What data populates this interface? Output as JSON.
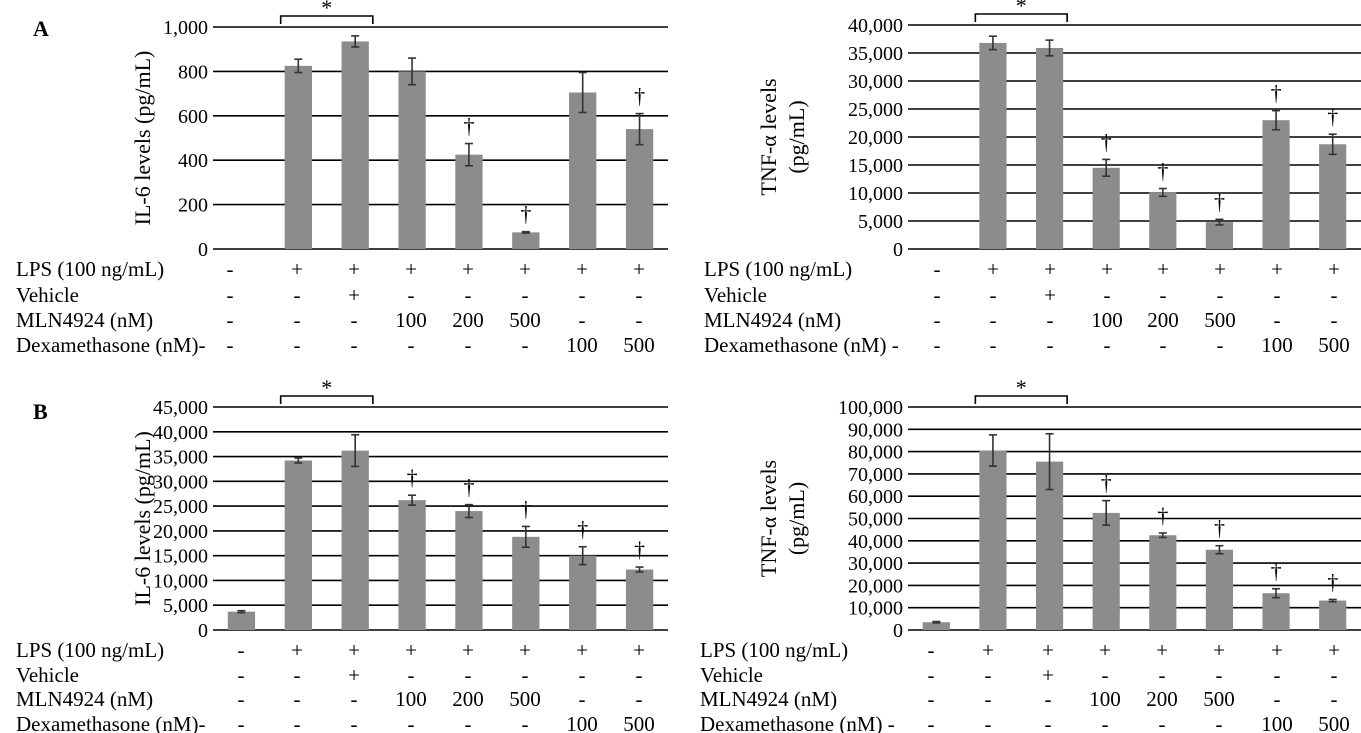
{
  "panel_labels": [
    "A",
    "B"
  ],
  "colors": {
    "bar": "#8c8c8c",
    "grid": "#000000",
    "text": "#000000"
  },
  "row_labels": [
    "LPS (100 ng/mL)",
    "Vehicle",
    "MLN4924 (nM)",
    "Dexamethasone (nM)-"
  ],
  "row_labels_right": [
    "LPS (100 ng/mL)",
    "Vehicle",
    "MLN4924 (nM)",
    "Dexamethasone (nM) -"
  ],
  "conditions": [
    [
      "-",
      "-",
      "-",
      "-"
    ],
    [
      "+",
      "-",
      "-",
      "-"
    ],
    [
      "+",
      "+",
      "-",
      "-"
    ],
    [
      "+",
      "-",
      "100",
      "-"
    ],
    [
      "+",
      "-",
      "200",
      "-"
    ],
    [
      "+",
      "-",
      "500",
      "-"
    ],
    [
      "+",
      "-",
      "-",
      "100"
    ],
    [
      "+",
      "-",
      "-",
      "500"
    ]
  ],
  "chart_data": [
    {
      "type": "bar",
      "panel": "A",
      "ylabel": "IL-6 levels (pg/mL)",
      "ylim": [
        0,
        1000
      ],
      "yticks": [
        "0",
        "200",
        "400",
        "600",
        "800",
        "1,000"
      ],
      "values": [
        0,
        825,
        935,
        800,
        425,
        75,
        705,
        540
      ],
      "errors": [
        0,
        30,
        25,
        60,
        50,
        3,
        90,
        70
      ],
      "significance": [
        {
          "type": "bracket",
          "from": 1,
          "to": 2,
          "symbol": "*"
        },
        {
          "type": "mark",
          "index": 4,
          "symbol": "†"
        },
        {
          "type": "mark",
          "index": 5,
          "symbol": "†"
        },
        {
          "type": "mark",
          "index": 7,
          "symbol": "†"
        }
      ]
    },
    {
      "type": "bar",
      "panel": "A",
      "ylabel": "TNF-α levels (pg/mL)",
      "ylim": [
        0,
        40000
      ],
      "yticks": [
        "0",
        "5,000",
        "10,000",
        "15,000",
        "20,000",
        "25,000",
        "30,000",
        "35,000",
        "40,000"
      ],
      "values": [
        0,
        36800,
        35900,
        14500,
        10100,
        4800,
        23000,
        18700
      ],
      "errors": [
        0,
        1200,
        1400,
        1500,
        700,
        500,
        1700,
        1800
      ],
      "significance": [
        {
          "type": "bracket",
          "from": 1,
          "to": 2,
          "symbol": "*"
        },
        {
          "type": "mark",
          "index": 3,
          "symbol": "†"
        },
        {
          "type": "mark",
          "index": 4,
          "symbol": "†"
        },
        {
          "type": "mark",
          "index": 5,
          "symbol": "†"
        },
        {
          "type": "mark",
          "index": 6,
          "symbol": "†"
        },
        {
          "type": "mark",
          "index": 7,
          "symbol": "†"
        }
      ]
    },
    {
      "type": "bar",
      "panel": "B",
      "ylabel": "IL-6 levels (pg/mL)",
      "ylim": [
        0,
        45000
      ],
      "yticks": [
        "0",
        "5,000",
        "10,000",
        "15,000",
        "20,000",
        "25,000",
        "30,000",
        "35,000",
        "40,000",
        "45,000"
      ],
      "values": [
        3700,
        34200,
        36200,
        26200,
        24000,
        18800,
        15000,
        12200
      ],
      "errors": [
        200,
        500,
        3200,
        1000,
        1300,
        2100,
        1800,
        500
      ],
      "significance": [
        {
          "type": "bracket",
          "from": 1,
          "to": 2,
          "symbol": "*"
        },
        {
          "type": "mark",
          "index": 3,
          "symbol": "†"
        },
        {
          "type": "mark",
          "index": 4,
          "symbol": "†"
        },
        {
          "type": "mark",
          "index": 5,
          "symbol": "†"
        },
        {
          "type": "mark",
          "index": 6,
          "symbol": "†"
        },
        {
          "type": "mark",
          "index": 7,
          "symbol": "†"
        }
      ]
    },
    {
      "type": "bar",
      "panel": "B",
      "ylabel": "TNF-α levels (pg/mL)",
      "ylim": [
        0,
        100000
      ],
      "yticks": [
        "0",
        "10,000",
        "20,000",
        "30,000",
        "40,000",
        "50,000",
        "60,000",
        "70,000",
        "80,000",
        "90,000",
        "100,000"
      ],
      "values": [
        3500,
        80500,
        75500,
        52500,
        42500,
        36000,
        16500,
        13200
      ],
      "errors": [
        300,
        7000,
        12500,
        5500,
        1000,
        1800,
        2000,
        500
      ],
      "significance": [
        {
          "type": "bracket",
          "from": 1,
          "to": 2,
          "symbol": "*"
        },
        {
          "type": "mark",
          "index": 3,
          "symbol": "†"
        },
        {
          "type": "mark",
          "index": 4,
          "symbol": "†"
        },
        {
          "type": "mark",
          "index": 5,
          "symbol": "†"
        },
        {
          "type": "mark",
          "index": 6,
          "symbol": "†"
        },
        {
          "type": "mark",
          "index": 7,
          "symbol": "†"
        }
      ]
    }
  ]
}
